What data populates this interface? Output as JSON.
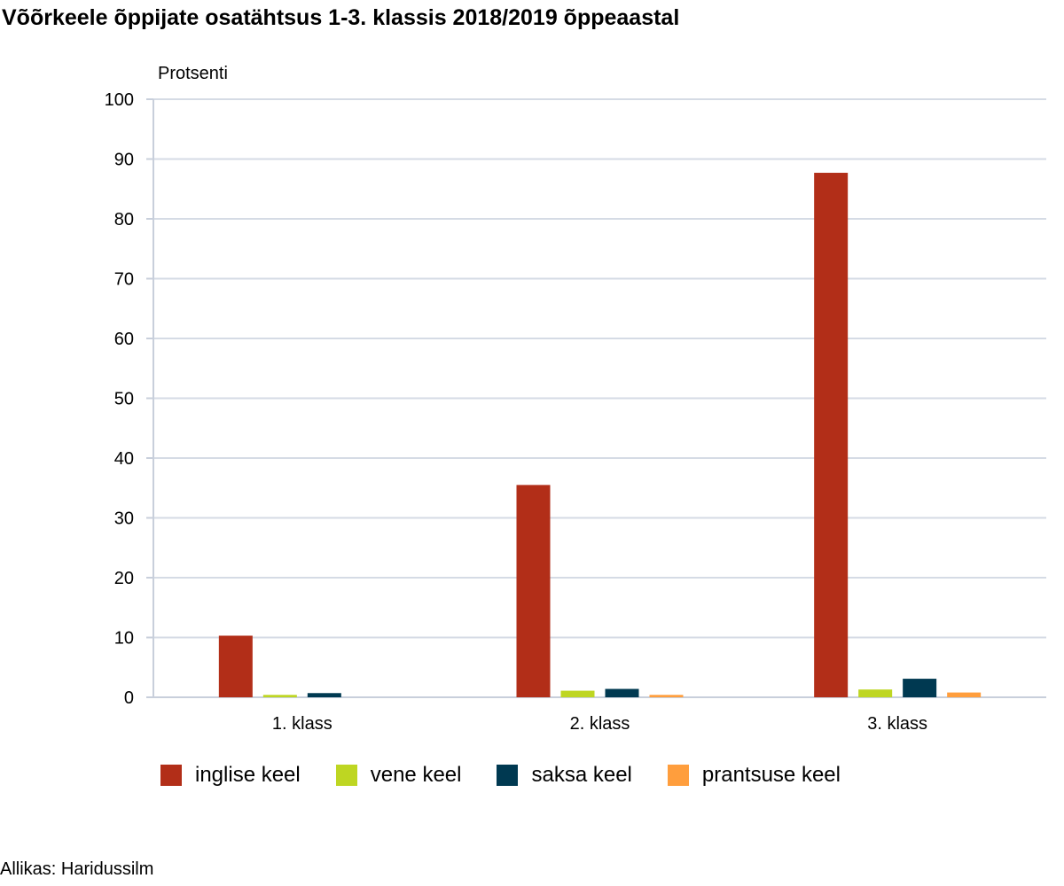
{
  "title": "Võõrkeele õppijate osatähtsus 1-3. klassis 2018/2019 õppeaastal",
  "source": "Allikas: Haridussilm",
  "chart_data": {
    "type": "bar",
    "title": "Võõrkeele õppijate osatähtsus 1-3. klassis 2018/2019 õppeaastal",
    "ylabel": "Protsenti",
    "xlabel": "",
    "ylim": [
      0,
      100
    ],
    "yticks": [
      "0",
      "10",
      "20",
      "30",
      "40",
      "50",
      "60",
      "70",
      "80",
      "90",
      "100"
    ],
    "categories": [
      "1. klass",
      "2. klass",
      "3. klass"
    ],
    "grid": true,
    "legend_position": "bottom",
    "series": [
      {
        "name": "inglise keel",
        "color": "#b22e18",
        "values": [
          10.3,
          35.5,
          87.7
        ]
      },
      {
        "name": "vene keel",
        "color": "#bed622",
        "values": [
          0.4,
          1.1,
          1.3
        ]
      },
      {
        "name": "saksa keel",
        "color": "#003951",
        "values": [
          0.7,
          1.4,
          3.1
        ]
      },
      {
        "name": "prantsuse keel",
        "color": "#ff9e3d",
        "values": [
          0.0,
          0.4,
          0.8
        ]
      }
    ]
  }
}
